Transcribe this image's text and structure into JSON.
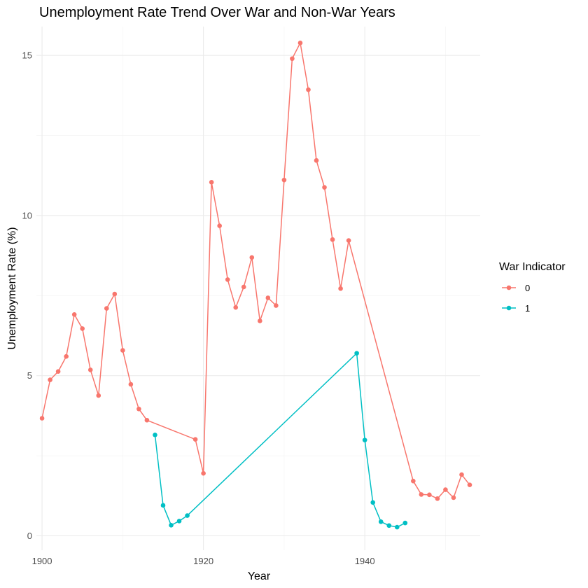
{
  "chart_data": {
    "type": "line",
    "title": "Unemployment Rate Trend Over War and Non-War Years",
    "xlabel": "Year",
    "ylabel": "Unemployment Rate (%)",
    "xlim": [
      1899.3,
      1954.3
    ],
    "ylim": [
      -0.45,
      15.9
    ],
    "x_ticks": [
      1900,
      1920,
      1940
    ],
    "y_ticks": [
      0,
      5,
      10,
      15
    ],
    "grid": true,
    "legend": {
      "title": "War Indicator",
      "position": "right"
    },
    "series": [
      {
        "name": "0",
        "color": "#F8766D",
        "x": [
          1900,
          1901,
          1902,
          1903,
          1904,
          1905,
          1906,
          1907,
          1908,
          1909,
          1910,
          1911,
          1912,
          1913,
          1919,
          1920,
          1921,
          1922,
          1923,
          1924,
          1925,
          1926,
          1927,
          1928,
          1929,
          1930,
          1931,
          1932,
          1933,
          1934,
          1935,
          1936,
          1937,
          1938,
          1946,
          1947,
          1948,
          1949,
          1950,
          1951,
          1952,
          1953
        ],
        "y": [
          3.67,
          4.87,
          5.13,
          5.6,
          6.91,
          6.47,
          5.18,
          4.38,
          7.1,
          7.55,
          5.79,
          4.73,
          3.96,
          3.61,
          3.01,
          1.95,
          11.04,
          9.68,
          8.0,
          7.13,
          7.77,
          8.69,
          6.71,
          7.43,
          7.19,
          11.11,
          14.9,
          15.39,
          13.93,
          11.72,
          10.88,
          9.25,
          7.72,
          9.22,
          1.71,
          1.29,
          1.28,
          1.16,
          1.44,
          1.19,
          1.91,
          1.59
        ]
      },
      {
        "name": "1",
        "color": "#00BFC4",
        "x": [
          1914,
          1915,
          1916,
          1917,
          1918,
          1939,
          1940,
          1941,
          1942,
          1943,
          1944,
          1945
        ],
        "y": [
          3.15,
          0.95,
          0.33,
          0.46,
          0.63,
          5.7,
          2.99,
          1.04,
          0.44,
          0.32,
          0.27,
          0.4
        ]
      }
    ]
  }
}
